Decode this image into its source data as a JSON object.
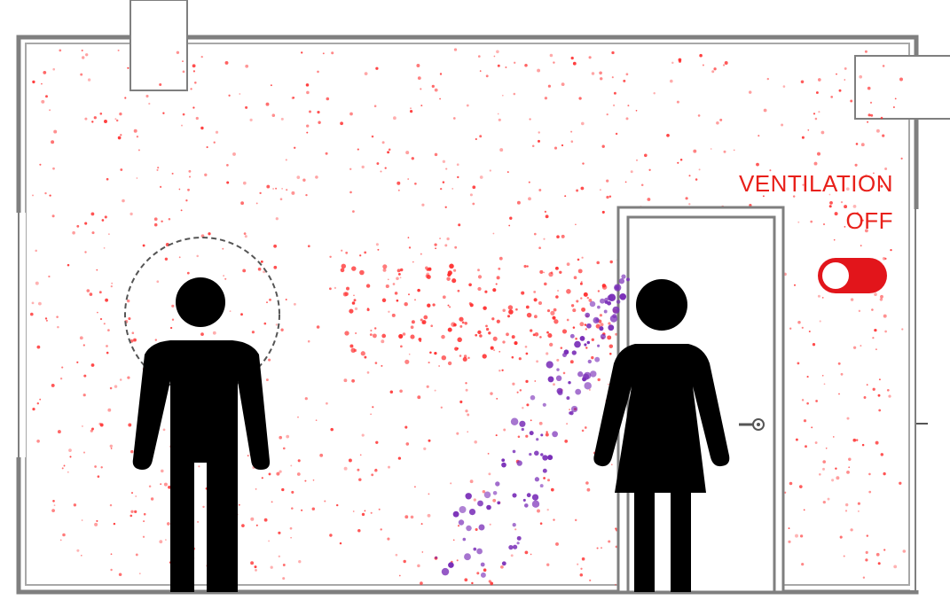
{
  "ventilation": {
    "label_line1": "VENTILATION",
    "label_line2": "OFF",
    "toggle_on": false,
    "toggle_color": "#e2151b"
  },
  "colors": {
    "aerosol_background": "#ff2a2a",
    "aerosol_exhaled": "#7a2fb8",
    "figures": "#000000",
    "walls": "#8a8a8a"
  },
  "icons": {
    "person_left": "man-icon",
    "person_right": "woman-icon",
    "door": "door-icon"
  }
}
